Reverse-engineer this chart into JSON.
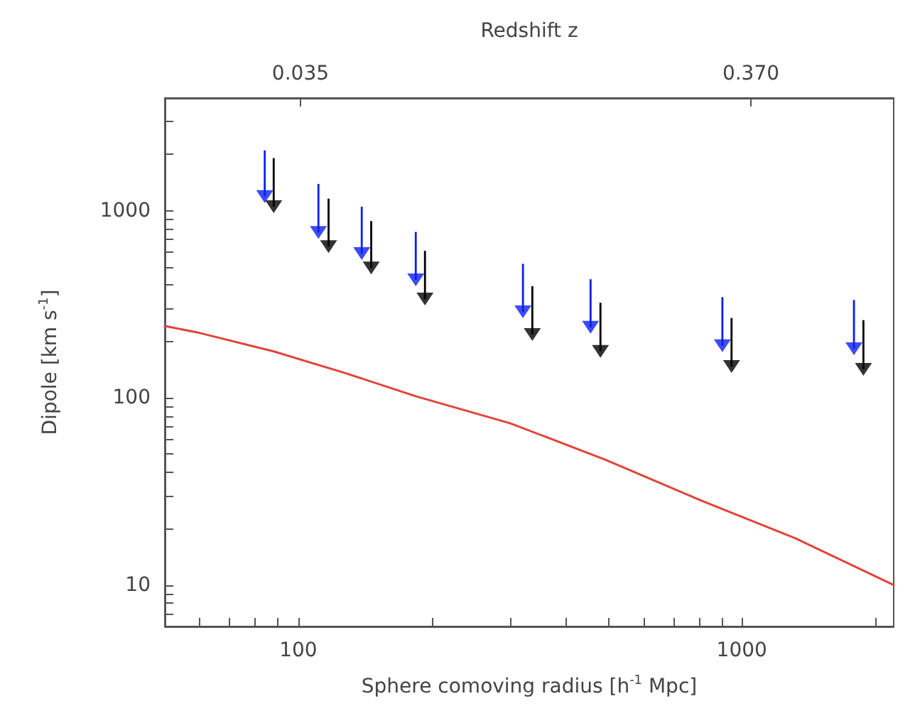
{
  "chart_data": {
    "type": "scatter",
    "xlabel": "Sphere comoving radius [h$^{-1}$ Mpc]",
    "ylabel": "Dipole [km s$^{-1}$]",
    "x2label": "Redshift z",
    "log": "xy",
    "marker": "triangle",
    "grid": false,
    "xlim": [
      50,
      2200
    ],
    "ylim": [
      6,
      4000
    ],
    "xticks": [
      {
        "value": 50,
        "label": null
      },
      {
        "value": 60,
        "label": null
      },
      {
        "value": 70,
        "label": null
      },
      {
        "value": 80,
        "label": null
      },
      {
        "value": 90,
        "label": null
      },
      100,
      {
        "value": 200,
        "label": null
      },
      {
        "value": 300,
        "label": null
      },
      {
        "value": 400,
        "label": null
      },
      {
        "value": 500,
        "label": null
      },
      {
        "value": 600,
        "label": null
      },
      {
        "value": 700,
        "label": null
      },
      {
        "value": 800,
        "label": null
      },
      {
        "value": 900,
        "label": null
      },
      1000,
      {
        "value": 2000,
        "label": null
      }
    ],
    "x2lim": [
      -0.0659,
      0.4762
    ],
    "x2ticks": [
      {
        "value": 0.035,
        "label": "0.035"
      },
      {
        "value": 0.37,
        "label": "0.370"
      }
    ],
    "yticks": [
      {
        "value": 7,
        "label": null
      },
      {
        "value": 8,
        "label": null
      },
      {
        "value": 9,
        "label": null
      },
      10,
      {
        "value": 20,
        "label": null
      },
      {
        "value": 30,
        "label": null
      },
      {
        "value": 40,
        "label": null
      },
      {
        "value": 50,
        "label": null
      },
      {
        "value": 60,
        "label": null
      },
      {
        "value": 70,
        "label": null
      },
      {
        "value": 80,
        "label": null
      },
      {
        "value": 90,
        "label": null
      },
      100,
      {
        "value": 200,
        "label": null
      },
      {
        "value": 300,
        "label": null
      },
      {
        "value": 400,
        "label": null
      },
      {
        "value": 500,
        "label": null
      },
      {
        "value": 600,
        "label": null
      },
      {
        "value": 700,
        "label": null
      },
      {
        "value": 800,
        "label": null
      },
      {
        "value": 900,
        "label": null
      },
      1000,
      {
        "value": 2000,
        "label": null
      },
      {
        "value": 3000,
        "label": null
      }
    ],
    "series": [
      {
        "color": "#0a1ff0",
        "x": [
          84,
          111,
          139,
          184,
          321,
          456,
          904,
          1790
        ],
        "values": [
          1190,
          765,
          590,
          427,
          288,
          238,
          190,
          183
        ],
        "errors": [
          [
            1190,
            2100
          ],
          [
            765,
            1390
          ],
          [
            590,
            1050
          ],
          [
            427,
            770
          ],
          [
            288,
            520
          ],
          [
            238,
            430
          ],
          [
            190,
            345
          ],
          [
            183,
            333
          ]
        ]
      },
      {
        "color": "#000000",
        "x": [
          88,
          117,
          146,
          193,
          337,
          480,
          948,
          1880
        ],
        "values": [
          1050,
          643,
          494,
          337,
          218,
          177,
          147,
          142
        ],
        "errors": [
          [
            1050,
            1910
          ],
          [
            643,
            1160
          ],
          [
            494,
            880
          ],
          [
            337,
            610
          ],
          [
            218,
            395
          ],
          [
            177,
            322
          ],
          [
            147,
            267
          ],
          [
            142,
            260
          ]
        ]
      },
      {
        "type": "line",
        "color": "#e0443a",
        "marker": "none",
        "line_style": "solid",
        "x": [
          50,
          60,
          88,
          127,
          184,
          301,
          494,
          809,
          1324,
          2200
        ],
        "values": [
          242,
          222,
          177,
          136,
          102,
          73,
          46.5,
          28.3,
          17.7,
          10
        ]
      }
    ]
  }
}
